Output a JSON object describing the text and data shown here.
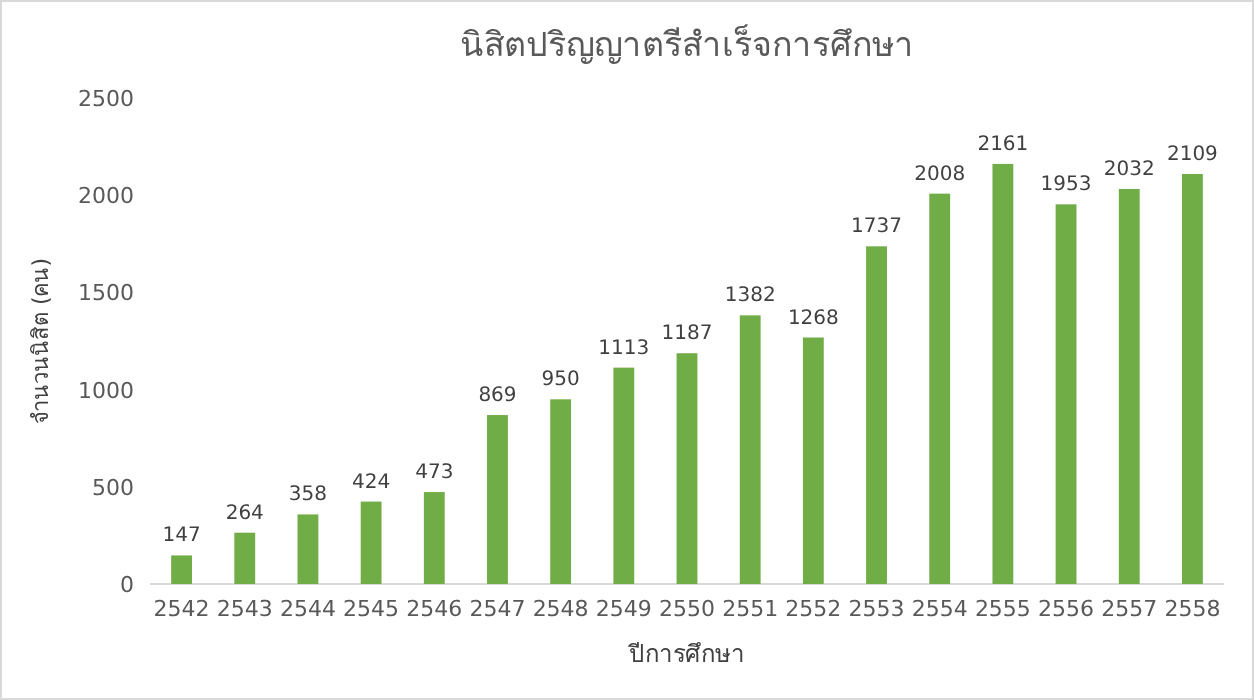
{
  "chart_data": {
    "type": "bar",
    "title": "นิสิตปริญญาตรีสำเร็จการศึกษา",
    "xlabel": "ปีการศึกษา",
    "ylabel": "จำนวนนิสิต (คน)",
    "categories": [
      "2542",
      "2543",
      "2544",
      "2545",
      "2546",
      "2547",
      "2548",
      "2549",
      "2550",
      "2551",
      "2552",
      "2553",
      "2554",
      "2555",
      "2556",
      "2557",
      "2558"
    ],
    "values": [
      147,
      264,
      358,
      424,
      473,
      869,
      950,
      1113,
      1187,
      1382,
      1268,
      1737,
      2008,
      2161,
      1953,
      2032,
      2109
    ],
    "color": "#70ad47",
    "ylim": [
      0,
      2500
    ],
    "yticks": [
      0,
      500,
      1000,
      1500,
      2000,
      2500
    ],
    "data_labels": true,
    "grid": false
  }
}
